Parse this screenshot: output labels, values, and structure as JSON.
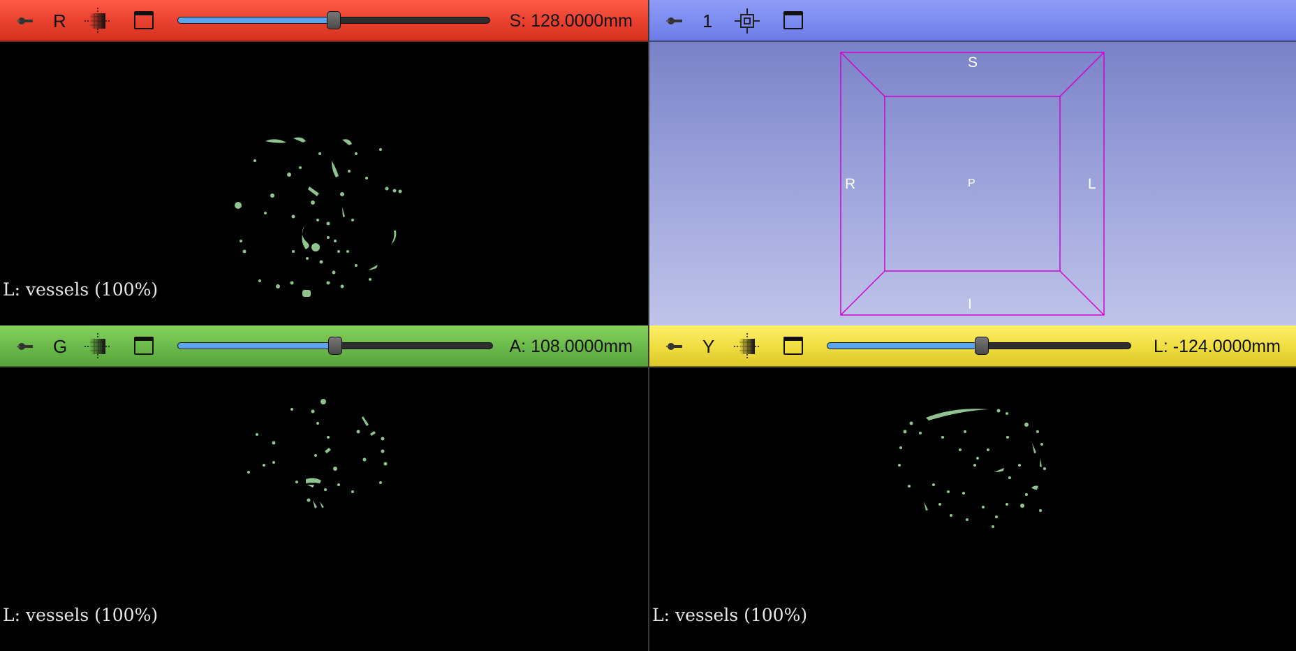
{
  "views": {
    "red": {
      "letter": "R",
      "offset": "S: 128.0000mm",
      "slider_fraction": 0.5,
      "overlay": "L: vessels (100%)",
      "bar_color": "#e8402f"
    },
    "three_d": {
      "letter": "1",
      "bar_color": "#7c8bf0",
      "cube_color": "#d200d2",
      "labels": {
        "top": "S",
        "bottom": "I",
        "left": "R",
        "right": "L",
        "center": "P"
      }
    },
    "green": {
      "letter": "G",
      "offset": "A: 108.0000mm",
      "slider_fraction": 0.5,
      "overlay": "L: vessels (100%)",
      "bar_color": "#6ab84a"
    },
    "yellow": {
      "letter": "Y",
      "offset": "L: -124.0000mm",
      "slider_fraction": 0.51,
      "overlay": "L: vessels (100%)",
      "bar_color": "#efdc3f"
    }
  },
  "segment_color": "#8fc48f",
  "icons": [
    "pin-icon",
    "lut-icon",
    "window-icon",
    "center-3d-icon"
  ]
}
